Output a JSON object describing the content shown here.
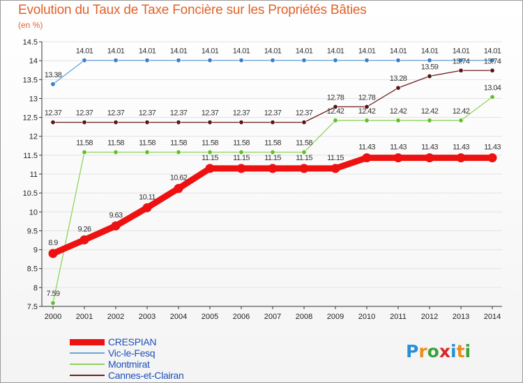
{
  "title": "Evolution du Taux de Taxe Foncière sur les Propriétés Bâties",
  "unit_note": "(en %)",
  "logo": {
    "text": "Proxiti",
    "letters": [
      "P",
      "r",
      "o",
      "x",
      "i",
      "t",
      "i"
    ],
    "letter_colors": [
      "#2a8fd6",
      "#f08a1c",
      "#3aa23a",
      "#d9262b",
      "#2a8fd6",
      "#f08a1c",
      "#3aa23a"
    ]
  },
  "chart_data": {
    "type": "line",
    "title": "Evolution du Taux de Taxe Foncière sur les Propriétés Bâties",
    "ylabel": "(en %)",
    "xlabel": "",
    "x": [
      2000,
      2001,
      2002,
      2003,
      2004,
      2005,
      2006,
      2007,
      2008,
      2009,
      2010,
      2011,
      2012,
      2013,
      2014
    ],
    "x_tick_labels": [
      "2000",
      "2001",
      "2002",
      "2003",
      "2004",
      "2005",
      "2006",
      "2007",
      "2008",
      "2009",
      "2010",
      "2011",
      "2012",
      "2013",
      "2014"
    ],
    "ylim": [
      7.5,
      14.5
    ],
    "y_ticks": [
      7.5,
      8,
      8.5,
      9,
      9.5,
      10,
      10.5,
      11,
      11.5,
      12,
      12.5,
      13,
      13.5,
      14,
      14.5
    ],
    "y_tick_labels": [
      "7.5",
      "8",
      "8.5",
      "9",
      "9.5",
      "10",
      "10.5",
      "11",
      "11.5",
      "12",
      "12.5",
      "13",
      "13.5",
      "14",
      "14.5"
    ],
    "grid": "horizontal",
    "legend_position": "bottom-left",
    "series": [
      {
        "name": "CRESPIAN",
        "color": "#ee1111",
        "emphasis": "thick",
        "values": [
          8.9,
          9.26,
          9.63,
          10.11,
          10.62,
          11.15,
          11.15,
          11.15,
          11.15,
          11.15,
          11.43,
          11.43,
          11.43,
          11.43,
          11.43
        ],
        "labels": [
          "8.9",
          "9.26",
          "9.63",
          "10.11",
          "10.62",
          "11.15",
          "11.15",
          "11.15",
          "11.15",
          "11.15",
          "11.43",
          "11.43",
          "11.43",
          "11.43",
          "11.43"
        ]
      },
      {
        "name": "Vic-le-Fesq",
        "color": "#6aa6d8",
        "emphasis": "thin",
        "values": [
          13.38,
          14.01,
          14.01,
          14.01,
          14.01,
          14.01,
          14.01,
          14.01,
          14.01,
          14.01,
          14.01,
          14.01,
          14.01,
          14.01,
          14.01
        ],
        "labels": [
          "13.38",
          "14.01",
          "14.01",
          "14.01",
          "14.01",
          "14.01",
          "14.01",
          "14.01",
          "14.01",
          "14.01",
          "14.01",
          "14.01",
          "14.01",
          "14.01",
          "14.01"
        ]
      },
      {
        "name": "Montmirat",
        "color": "#8fd45a",
        "emphasis": "thin",
        "values": [
          7.59,
          11.58,
          11.58,
          11.58,
          11.58,
          11.58,
          11.58,
          11.58,
          11.58,
          12.42,
          12.42,
          12.42,
          12.42,
          12.42,
          13.04
        ],
        "labels": [
          "7.59",
          "11.58",
          "11.58",
          "11.58",
          "11.58",
          "11.58",
          "11.58",
          "11.58",
          "11.58",
          "12.42",
          "12.42",
          "12.42",
          "12.42",
          "12.42",
          "13.04"
        ]
      },
      {
        "name": "Cannes-et-Clairan",
        "color": "#6b1f1f",
        "emphasis": "thin",
        "values": [
          12.37,
          12.37,
          12.37,
          12.37,
          12.37,
          12.37,
          12.37,
          12.37,
          12.37,
          12.78,
          12.78,
          13.28,
          13.59,
          13.74,
          13.74
        ],
        "labels": [
          "12.37",
          "12.37",
          "12.37",
          "12.37",
          "12.37",
          "12.37",
          "12.37",
          "12.37",
          "12.37",
          "12.78",
          "12.78",
          "13.28",
          "13.59",
          "13.74",
          "13.74"
        ]
      }
    ]
  }
}
